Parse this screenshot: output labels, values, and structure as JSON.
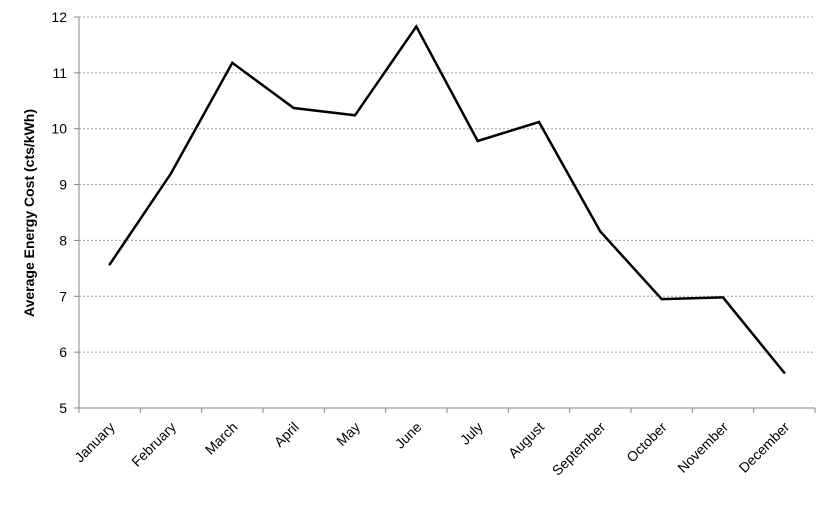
{
  "chart_data": {
    "type": "line",
    "title": "",
    "xlabel": "",
    "ylabel": "Average Energy Cost (cts/kWh)",
    "categories": [
      "January",
      "February",
      "March",
      "April",
      "May",
      "June",
      "July",
      "August",
      "September",
      "October",
      "November",
      "December"
    ],
    "series": [
      {
        "values": [
          7.57,
          9.2,
          11.18,
          10.37,
          10.24,
          11.83,
          9.78,
          10.12,
          8.16,
          6.95,
          6.98,
          5.63
        ]
      }
    ],
    "ylim": [
      5,
      12
    ],
    "yticks": [
      5,
      6,
      7,
      8,
      9,
      10,
      11,
      12
    ],
    "grid": true,
    "legend": "none",
    "colors": {
      "line": "#000000",
      "grid": "#a0a0a0",
      "axis": "#868686"
    }
  }
}
